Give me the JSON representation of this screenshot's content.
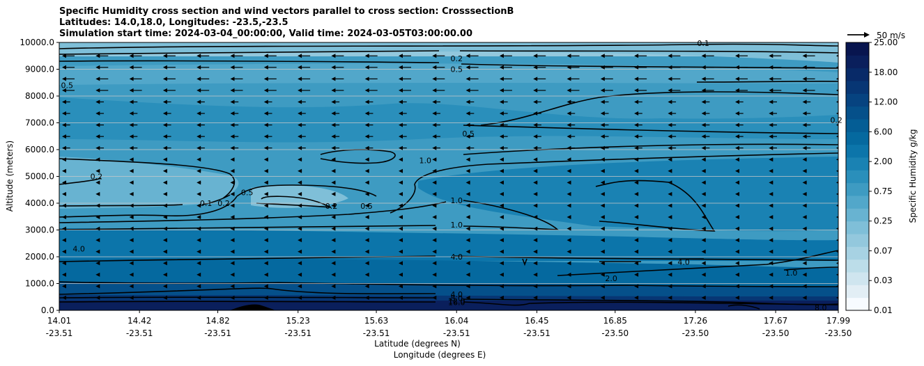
{
  "title_lines": [
    "Specific Humidity cross section and wind vectors parallel to cross section: CrosssectionB",
    "Latitudes: 14.0,18.0, Longitudes: -23.5,-23.5",
    "Simulation start time: 2024-03-04_00:00:00, Valid time: 2024-03-05T03:00:00.00"
  ],
  "chart_data": {
    "type": "heatmap",
    "subtype": "filled contour cross section with contour lines and wind vectors",
    "ylabel": "Altitude (meters)",
    "xlabel_lat": "Latitude (degrees N)",
    "xlabel_lon": "Longitude (degrees E)",
    "ylim": [
      0,
      10000
    ],
    "yticks": [
      "0.0",
      "1000.0",
      "2000.0",
      "3000.0",
      "4000.0",
      "5000.0",
      "6000.0",
      "7000.0",
      "8000.0",
      "9000.0",
      "10000.0"
    ],
    "xlim": [
      14.01,
      17.99
    ],
    "xticks": [
      {
        "lat": "14.01",
        "lon": "-23.51"
      },
      {
        "lat": "14.42",
        "lon": "-23.51"
      },
      {
        "lat": "14.82",
        "lon": "-23.51"
      },
      {
        "lat": "15.23",
        "lon": "-23.51"
      },
      {
        "lat": "15.63",
        "lon": "-23.51"
      },
      {
        "lat": "16.04",
        "lon": "-23.51"
      },
      {
        "lat": "16.45",
        "lon": "-23.51"
      },
      {
        "lat": "16.85",
        "lon": "-23.50"
      },
      {
        "lat": "17.26",
        "lon": "-23.50"
      },
      {
        "lat": "17.67",
        "lon": "-23.50"
      },
      {
        "lat": "17.99",
        "lon": "-23.50"
      }
    ],
    "grid": "horizontal",
    "colorbar": {
      "label": "Specific Humidity g/kg",
      "ticks": [
        "0.01",
        "0.03",
        "0.07",
        "0.25",
        "0.75",
        "2.00",
        "6.00",
        "12.00",
        "18.00",
        "25.00"
      ],
      "colors": [
        "#f7fbff",
        "#e2eef5",
        "#cfe5ef",
        "#bcdde9",
        "#a7d2e3",
        "#93c8dd",
        "#7fbfd8",
        "#68b3d1",
        "#52a7ca",
        "#3e9bc2",
        "#2a8fbb",
        "#1a82b3",
        "#0c75aa",
        "#05699f",
        "#045d95",
        "#05508a",
        "#064380",
        "#073674",
        "#082a68",
        "#0a1f5c",
        "#08154f"
      ]
    },
    "wind_key": "50 m/s",
    "wind_direction": "toward decreasing latitude (left)",
    "contour_labels": [
      {
        "label": "0.2",
        "lat": 16.04,
        "alt": 9400
      },
      {
        "label": "0.5",
        "lat": 16.04,
        "alt": 9000
      },
      {
        "label": "0.1",
        "lat": 17.3,
        "alt": 9980
      },
      {
        "label": "0.5",
        "lat": 14.05,
        "alt": 8400
      },
      {
        "label": "0.2",
        "lat": 17.98,
        "alt": 7100
      },
      {
        "label": "0.5",
        "lat": 16.1,
        "alt": 6600
      },
      {
        "label": "1.0",
        "lat": 15.88,
        "alt": 5600
      },
      {
        "label": "0.2",
        "lat": 14.2,
        "alt": 5000
      },
      {
        "label": "0.5",
        "lat": 14.97,
        "alt": 4400
      },
      {
        "label": "0.1",
        "lat": 14.76,
        "alt": 4000
      },
      {
        "label": "0.2",
        "lat": 14.85,
        "alt": 4000
      },
      {
        "label": "0.2",
        "lat": 15.4,
        "alt": 3900
      },
      {
        "label": "0.5",
        "lat": 15.58,
        "alt": 3900
      },
      {
        "label": "1.0",
        "lat": 16.04,
        "alt": 4100
      },
      {
        "label": "1.0",
        "lat": 16.04,
        "alt": 3200
      },
      {
        "label": "4.0",
        "lat": 14.11,
        "alt": 2300
      },
      {
        "label": "4.0",
        "lat": 16.04,
        "alt": 2000
      },
      {
        "label": "4.0",
        "lat": 17.2,
        "alt": 1800
      },
      {
        "label": "2.0",
        "lat": 16.83,
        "alt": 1200
      },
      {
        "label": "1.0",
        "lat": 17.75,
        "alt": 1400
      },
      {
        "label": "4.0",
        "lat": 16.04,
        "alt": 600
      },
      {
        "label": "8.0",
        "lat": 16.04,
        "alt": 450
      },
      {
        "label": "12.0",
        "lat": 16.04,
        "alt": 350
      },
      {
        "label": "16.0",
        "lat": 16.04,
        "alt": 300
      },
      {
        "label": "8.0",
        "lat": 17.9,
        "alt": 100
      }
    ]
  }
}
